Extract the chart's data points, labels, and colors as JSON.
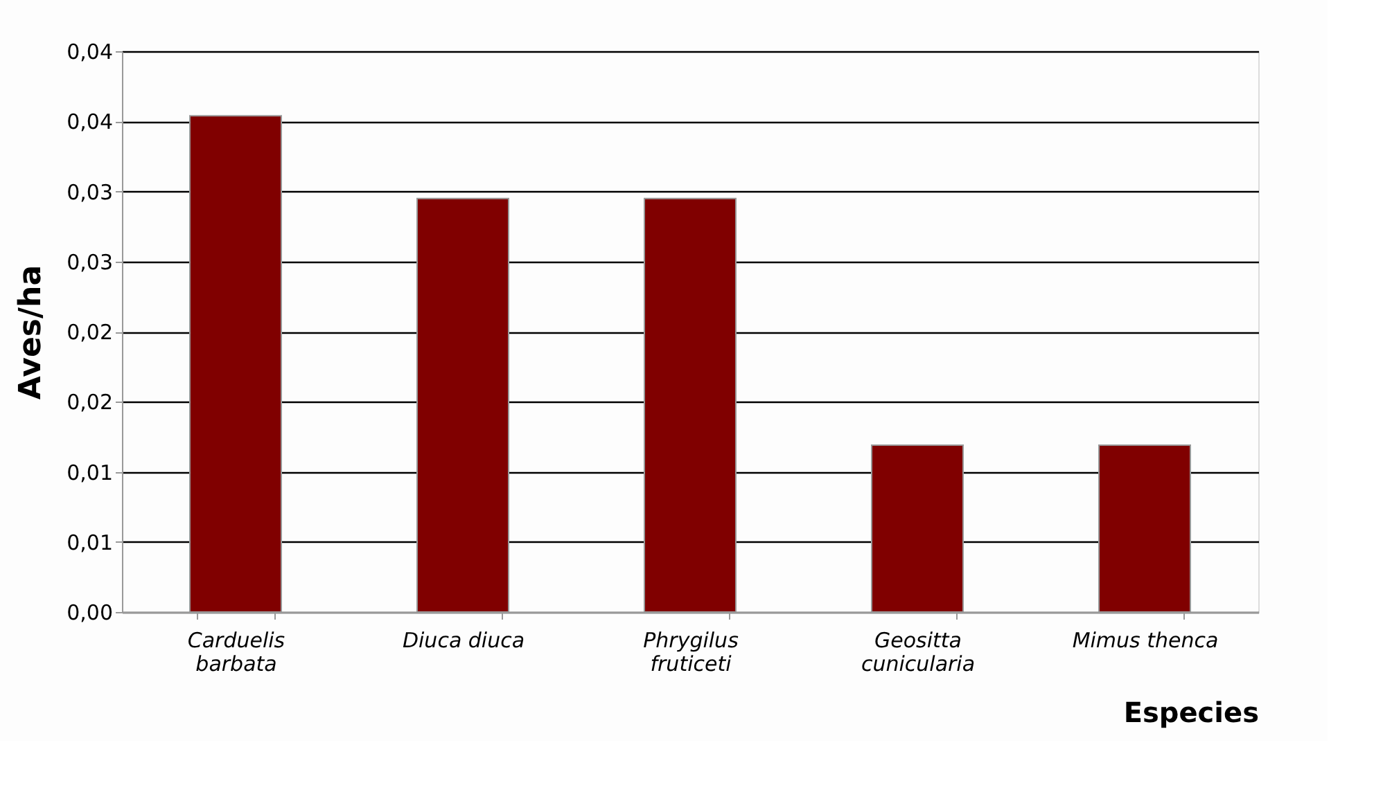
{
  "chart_data": {
    "type": "bar",
    "xlabel": "Especies",
    "ylabel": "Aves/ha",
    "categories": [
      "Carduelis barbata",
      "Diuca diuca",
      "Phrygilus fruticeti",
      "Geositta cunicularia",
      "Mimus thenca"
    ],
    "values": [
      0.0354,
      0.0295,
      0.0295,
      0.0119,
      0.0119
    ],
    "color": "#800000",
    "ylim": [
      0,
      0.04
    ],
    "yticks": [
      {
        "value": 0,
        "label": "0,00"
      },
      {
        "value": 0.005,
        "label": "0,01"
      },
      {
        "value": 0.01,
        "label": "0,01"
      },
      {
        "value": 0.015,
        "label": "0,02"
      },
      {
        "value": 0.02,
        "label": "0,02"
      },
      {
        "value": 0.025,
        "label": "0,03"
      },
      {
        "value": 0.03,
        "label": "0,03"
      },
      {
        "value": 0.035,
        "label": "0,04"
      },
      {
        "value": 0.04,
        "label": "0,04"
      }
    ],
    "grid": "y"
  }
}
